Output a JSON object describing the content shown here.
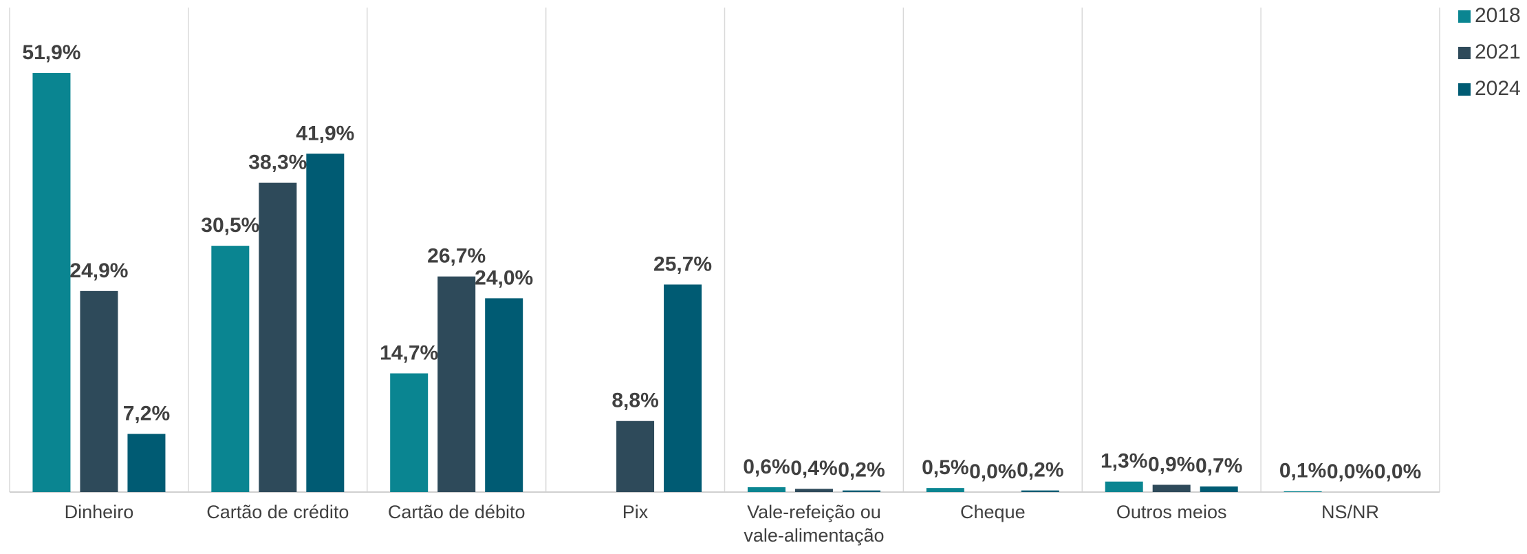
{
  "chart_data": {
    "type": "bar",
    "categories": [
      "Dinheiro",
      "Cartão de crédito",
      "Cartão de débito",
      "Pix",
      "Vale-refeição ou vale-alimentação",
      "Cheque",
      "Outros meios",
      "NS/NR"
    ],
    "series": [
      {
        "name": "2018",
        "color": "#0a8591",
        "values": [
          51.9,
          30.5,
          14.7,
          null,
          0.6,
          0.5,
          1.3,
          0.1
        ],
        "value_labels": [
          "51,9%",
          "30,5%",
          "14,7%",
          null,
          "0,6%",
          "0,5%",
          "1,3%",
          "0,1%"
        ]
      },
      {
        "name": "2021",
        "color": "#2e4a5a",
        "values": [
          24.9,
          38.3,
          26.7,
          8.8,
          0.4,
          0.0,
          0.9,
          0.0
        ],
        "value_labels": [
          "24,9%",
          "38,3%",
          "26,7%",
          "8,8%",
          "0,4%",
          "0,0%",
          "0,9%",
          "0,0%"
        ]
      },
      {
        "name": "2024",
        "color": "#005b73",
        "values": [
          7.2,
          41.9,
          24.0,
          25.7,
          0.2,
          0.2,
          0.7,
          0.0
        ],
        "value_labels": [
          "7,2%",
          "41,9%",
          "24,0%",
          "25,7%",
          "0,2%",
          "0,2%",
          "0,7%",
          "0,0%"
        ]
      }
    ],
    "ylim": [
      0,
      60
    ],
    "legend": "top-right"
  }
}
